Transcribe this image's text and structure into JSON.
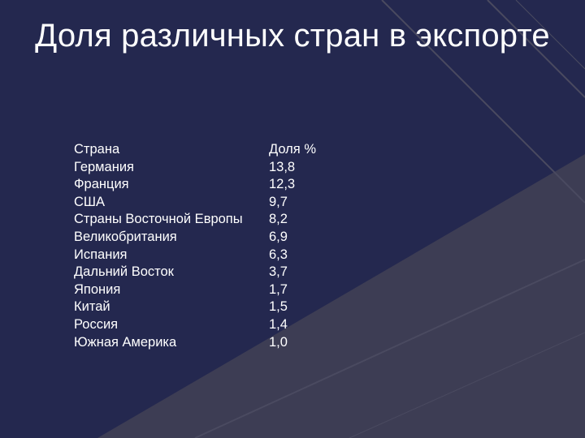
{
  "slide": {
    "title": "Доля различных стран в экспорте",
    "table": {
      "headers": [
        "Страна",
        "Доля %"
      ],
      "rows": [
        [
          "Германия",
          "13,8"
        ],
        [
          "Франция",
          "12,3"
        ],
        [
          "США",
          "9,7"
        ],
        [
          "Страны Восточной Европы",
          "8,2"
        ],
        [
          "Великобритания",
          "6,9"
        ],
        [
          "Испания",
          "6,3"
        ],
        [
          "Дальний Восток",
          "3,7"
        ],
        [
          "Япония",
          "1,7"
        ],
        [
          "Китай",
          "1,5"
        ],
        [
          "Россия",
          "1,4"
        ],
        [
          "Южная Америка",
          "1,0"
        ]
      ]
    }
  },
  "colors": {
    "background": "#24284f",
    "decor_gray": "#3d3d54",
    "decor_frame": "#4a4a60",
    "text": "#ffffff"
  }
}
